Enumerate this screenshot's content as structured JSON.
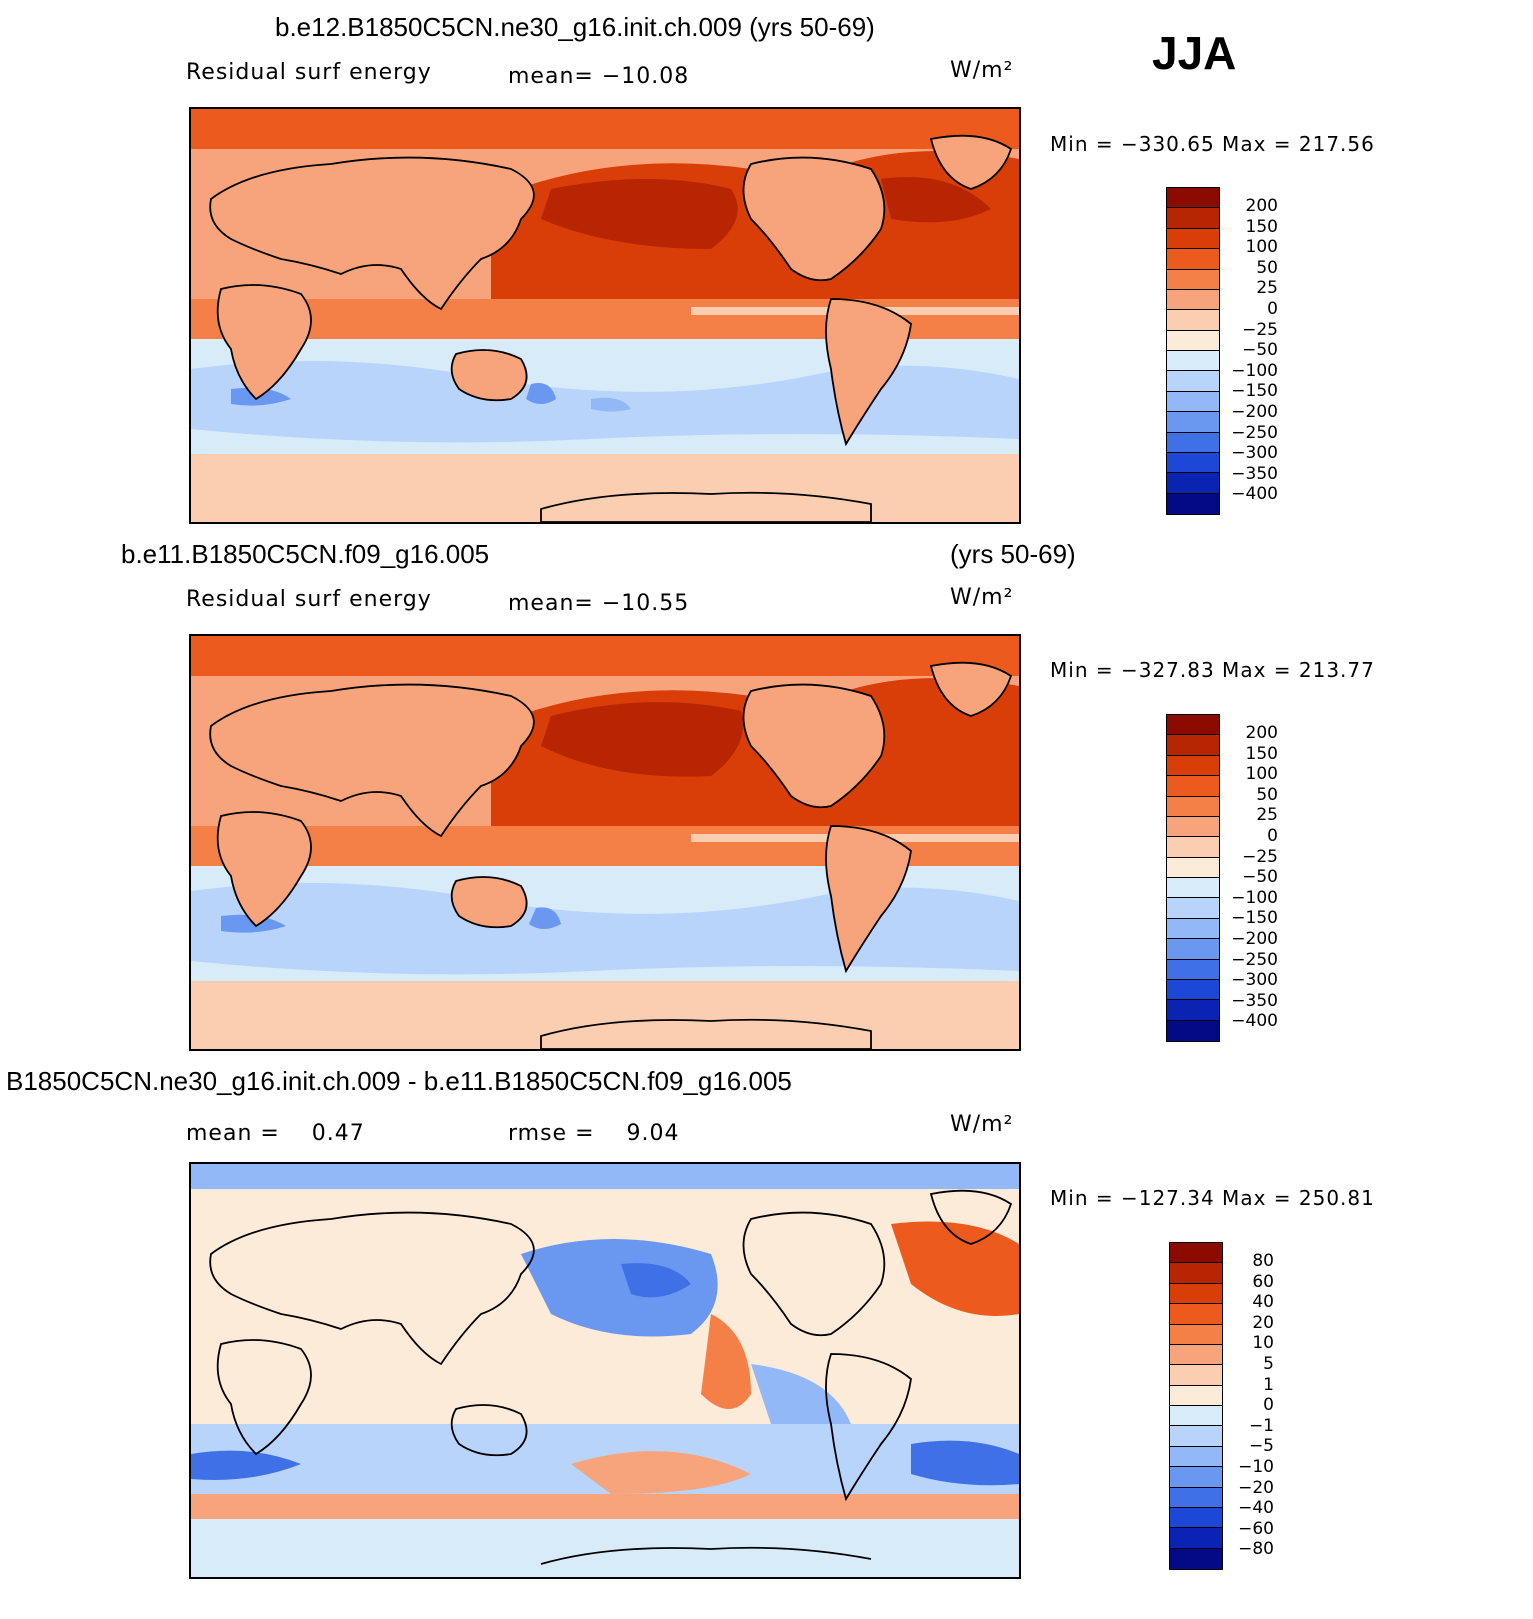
{
  "season": "JJA",
  "panels": [
    {
      "title": "b.e12.B1850C5CN.ne30_g16.init.ch.009 (yrs 50-69)",
      "subtitle_left": "",
      "variable": "Residual surf energy",
      "mean_label": "mean= −10.08",
      "units": "W/m²",
      "minmax": "Min = −330.65 Max = 217.56"
    },
    {
      "title_left": "b.e11.B1850C5CN.f09_g16.005",
      "title_right": "(yrs 50-69)",
      "variable": "Residual surf energy",
      "mean_label": "mean= −10.55",
      "units": "W/m²",
      "minmax": "Min = −327.83 Max = 213.77"
    },
    {
      "title": "B1850C5CN.ne30_g16.init.ch.009 - b.e11.B1850C5CN.f09_g16.005",
      "mean_label": "mean =    0.47",
      "rmse_label": "rmse =    9.04",
      "units": "W/m²",
      "minmax": "Min = −127.34 Max = 250.81"
    }
  ],
  "colorbars": {
    "absolute": {
      "labels": [
        "200",
        "150",
        "100",
        "50",
        "25",
        "0",
        "−25",
        "−50",
        "−100",
        "−150",
        "−200",
        "−250",
        "−300",
        "−350",
        "−400"
      ],
      "colors": [
        "#8b0b00",
        "#b82503",
        "#d93d08",
        "#ec5a1e",
        "#f47f47",
        "#f7a47c",
        "#fbcdb1",
        "#fdebd9",
        "#d8ebf9",
        "#b8d4fb",
        "#93b8f7",
        "#6a98f0",
        "#3f70e6",
        "#1d47d6",
        "#0a23b3",
        "#040a85"
      ]
    },
    "difference": {
      "labels": [
        "80",
        "60",
        "40",
        "20",
        "10",
        "5",
        "1",
        "0",
        "−1",
        "−5",
        "−10",
        "−20",
        "−40",
        "−60",
        "−80"
      ],
      "colors": [
        "#8b0b00",
        "#b82503",
        "#d93d08",
        "#ec5a1e",
        "#f47f47",
        "#f7a47c",
        "#fbcdb1",
        "#fdebd9",
        "#d8ebf9",
        "#b8d4fb",
        "#93b8f7",
        "#6a98f0",
        "#3f70e6",
        "#1d47d6",
        "#0a23b3",
        "#040a85"
      ]
    }
  }
}
